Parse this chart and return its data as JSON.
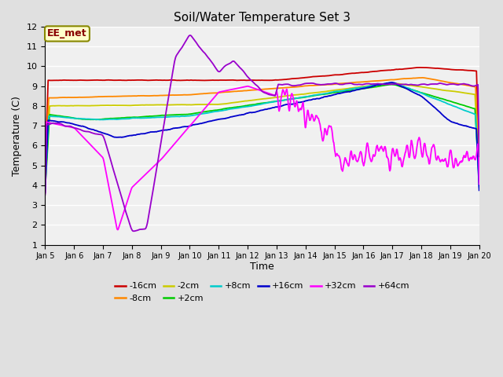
{
  "title": "Soil/Water Temperature Set 3",
  "xlabel": "Time",
  "ylabel": "Temperature (C)",
  "ylim": [
    1.0,
    12.0
  ],
  "yticks": [
    1.0,
    2.0,
    3.0,
    4.0,
    5.0,
    6.0,
    7.0,
    8.0,
    9.0,
    10.0,
    11.0,
    12.0
  ],
  "xtick_labels": [
    "Jan 5",
    "Jan 6",
    "Jan 7",
    "Jan 8",
    "Jan 9",
    "Jan 10",
    "Jan 11",
    "Jan 12",
    "Jan 13",
    "Jan 14",
    "Jan 15",
    "Jan 16",
    "Jan 17",
    "Jan 18",
    "Jan 19",
    "Jan 20"
  ],
  "n_points": 1440,
  "days": 15,
  "fig_bg_color": "#e0e0e0",
  "plot_bg_color": "#f0f0f0",
  "annotation_text": "EE_met",
  "annotation_bg": "#ffffcc",
  "annotation_border": "#888800",
  "series": {
    "-16cm": {
      "color": "#cc0000",
      "lw": 1.3
    },
    "-8cm": {
      "color": "#ff8800",
      "lw": 1.3
    },
    "-2cm": {
      "color": "#cccc00",
      "lw": 1.3
    },
    "+2cm": {
      "color": "#00cc00",
      "lw": 1.3
    },
    "+8cm": {
      "color": "#00cccc",
      "lw": 1.3
    },
    "+16cm": {
      "color": "#0000cc",
      "lw": 1.3
    },
    "+32cm": {
      "color": "#ff00ff",
      "lw": 1.3
    },
    "+64cm": {
      "color": "#9900cc",
      "lw": 1.3
    }
  },
  "legend_order": [
    "-16cm",
    "-8cm",
    "-2cm",
    "+2cm",
    "+8cm",
    "+16cm",
    "+32cm",
    "+64cm"
  ]
}
